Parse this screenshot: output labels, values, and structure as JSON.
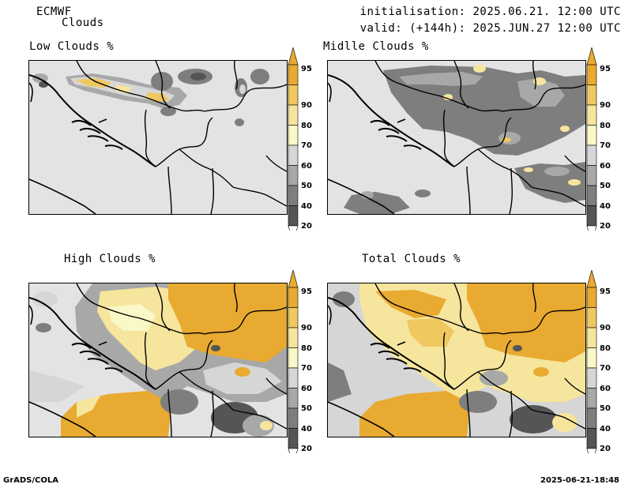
{
  "header": {
    "model": "ECMWF",
    "product": "Clouds",
    "init": "initialisation: 2025.06.21. 12:00 UTC",
    "valid": "valid: (+144h): 2025.JUN.27 12:00 UTC"
  },
  "panels": [
    {
      "title": "Low Clouds %"
    },
    {
      "title": "Midlle Clouds %"
    },
    {
      "title": "High Clouds %"
    },
    {
      "title": "Total Clouds %"
    }
  ],
  "colorbar": {
    "ticks": [
      "95",
      "90",
      "80",
      "70",
      "60",
      "50",
      "40",
      "20"
    ],
    "colors": [
      "#e8aa30",
      "#f0c860",
      "#f6e59c",
      "#f9f8c6",
      "#d6d6d6",
      "#a8a8a8",
      "#7e7e7e",
      "#555555",
      "#444444"
    ]
  },
  "footer": {
    "left": "GrADS/COLA",
    "right": "2025-06-21-18:48"
  }
}
